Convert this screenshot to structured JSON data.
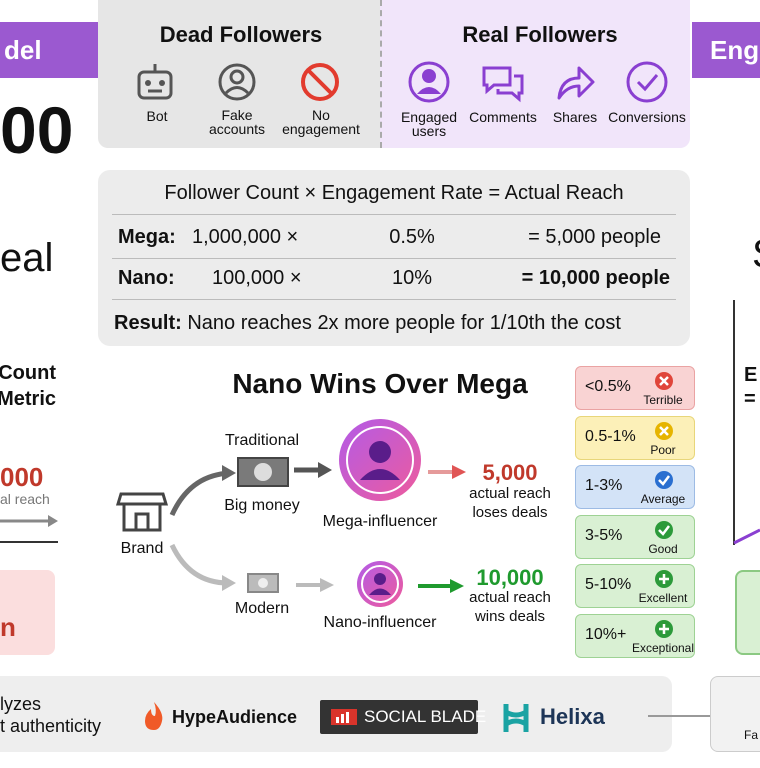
{
  "edge_left": {
    "banner": "del",
    "big_number": "00",
    "word": "eal",
    "heading": [
      "Count",
      "Metric"
    ],
    "number": "000",
    "number_caption": "al reach",
    "alert": "n",
    "footer": [
      "lyzes",
      "t authenticity"
    ]
  },
  "edge_right": {
    "banner": "Eng",
    "letter": "S",
    "lines": [
      "E",
      "="
    ],
    "footer": "Fa"
  },
  "dead_followers": {
    "title": "Dead Followers",
    "items": [
      "Bot",
      "Fake accounts",
      "No engagement"
    ]
  },
  "real_followers": {
    "title": "Real Followers",
    "items": [
      "Engaged users",
      "Comments",
      "Shares",
      "Conversions"
    ]
  },
  "formula": {
    "header": "Follower Count × Engagement Rate = Actual Reach",
    "rows": [
      [
        "Mega:",
        "1,000,000 ×",
        "0.5%",
        "= 5,000 people"
      ],
      [
        "Nano:",
        "100,000 ×",
        "10%",
        "= 10,000 people"
      ]
    ],
    "result_label": "Result:",
    "result": "Nano reaches 2x more people for 1/10th the cost"
  },
  "comparison": {
    "title": "Nano Wins Over Mega",
    "brand": "Brand",
    "traditional": {
      "label": "Traditional",
      "money": "Big money",
      "influencer": "Mega-influencer",
      "reach": "5,000",
      "reach_caption": "actual reach",
      "outcome": "loses deals"
    },
    "modern": {
      "label": "Modern",
      "influencer": "Nano-influencer",
      "reach": "10,000",
      "reach_caption": "actual reach",
      "outcome": "wins deals"
    }
  },
  "rates": [
    {
      "range": "<0.5%",
      "label": "Terrible"
    },
    {
      "range": "0.5-1%",
      "label": "Poor"
    },
    {
      "range": "1-3%",
      "label": "Average"
    },
    {
      "range": "3-5%",
      "label": "Good"
    },
    {
      "range": "5-10%",
      "label": "Excellent"
    },
    {
      "range": "10%+",
      "label": "Exceptional"
    }
  ],
  "tools": [
    "HypeAudience",
    "SOCIAL BLADE",
    "Helixa"
  ]
}
